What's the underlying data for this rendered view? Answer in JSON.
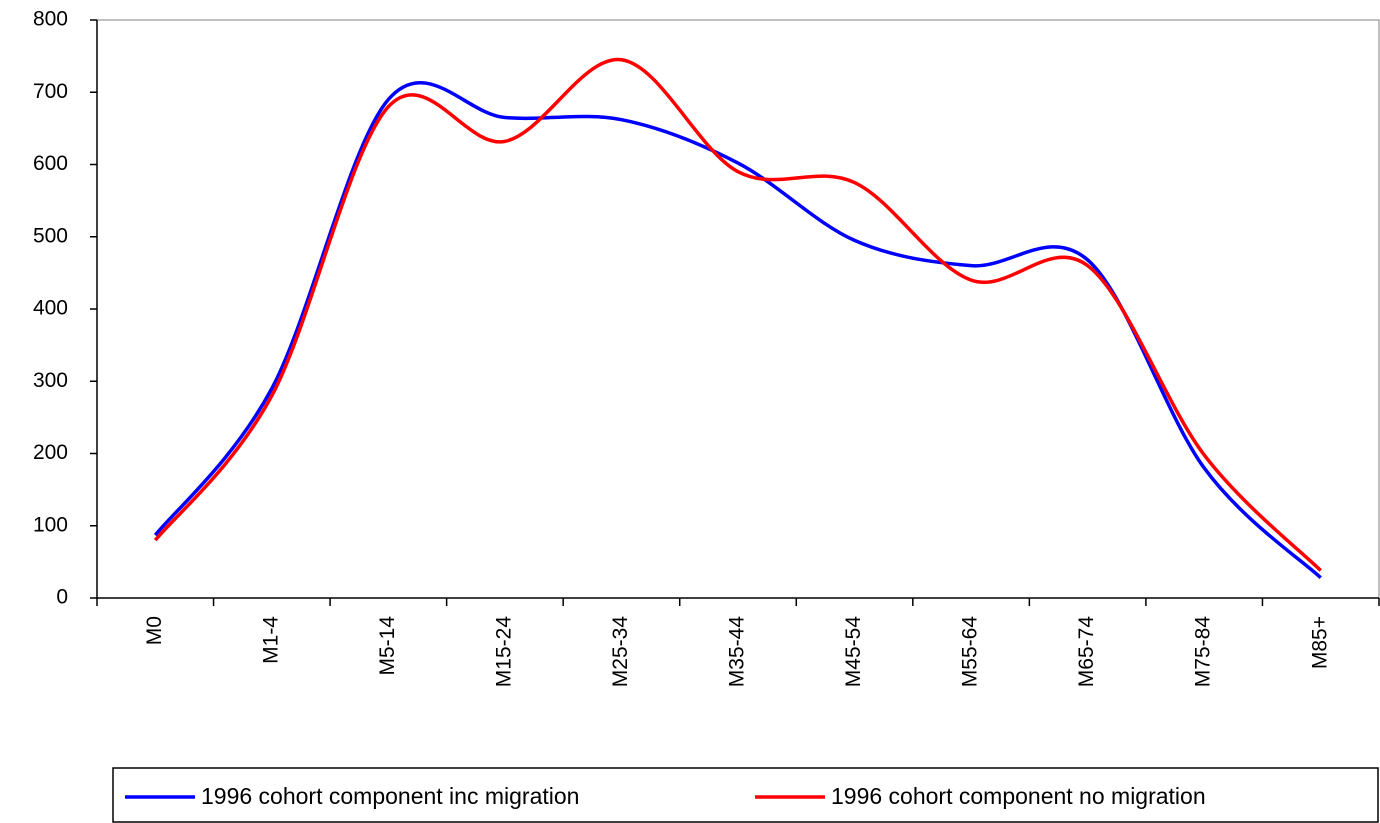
{
  "chart_data": {
    "type": "line",
    "categories": [
      "M0",
      "M1-4",
      "M5-14",
      "M15-24",
      "M25-34",
      "M35-44",
      "M45-54",
      "M55-64",
      "M65-74",
      "M75-84",
      "M85+"
    ],
    "series": [
      {
        "name": "1996 cohort component inc migration",
        "color": "#0000ff",
        "values": [
          87,
          290,
          690,
          665,
          662,
          602,
          495,
          460,
          468,
          180,
          28
        ]
      },
      {
        "name": "1996 cohort component no migration",
        "color": "#ff0000",
        "values": [
          80,
          280,
          680,
          632,
          745,
          590,
          575,
          440,
          460,
          198,
          38
        ]
      }
    ],
    "ylim": [
      0,
      800
    ],
    "yticks": [
      0,
      100,
      200,
      300,
      400,
      500,
      600,
      700,
      800
    ],
    "smooth": true,
    "legend": "bottom"
  }
}
